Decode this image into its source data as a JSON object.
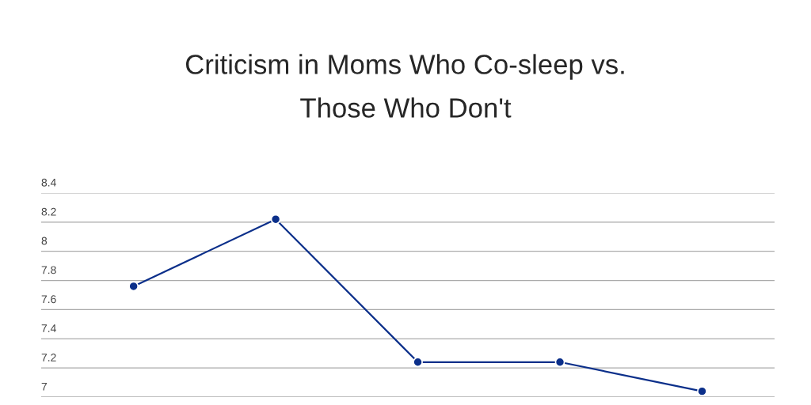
{
  "chart_data": {
    "type": "line",
    "title": "Criticism in Moms Who Co-sleep vs.\nThose Who Don't",
    "categories": [
      null,
      null,
      null,
      null,
      null
    ],
    "series": [
      {
        "color": "#0b2f8a",
        "values": [
          7.76,
          8.22,
          7.24,
          7.24,
          7.04
        ]
      }
    ],
    "ylim": [
      7,
      8.4
    ],
    "yticks": [
      7,
      7.2,
      7.4,
      7.6,
      7.8,
      8,
      8.2,
      8.4
    ],
    "grid": "y",
    "marker": "circle",
    "line_style": "solid",
    "tick_labels": "y"
  }
}
